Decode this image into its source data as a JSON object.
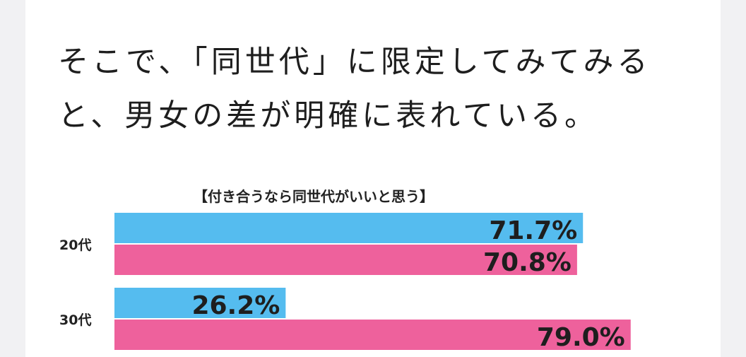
{
  "article": {
    "text": "そこで、「同世代」に限定してみてみると、男女の差が明確に表れている。"
  },
  "chart_data": {
    "type": "bar",
    "orientation": "horizontal",
    "title": "【付き合うなら同世代がいいと思う】",
    "categories": [
      "20代",
      "30代"
    ],
    "value_unit": "%",
    "series": [
      {
        "values": [
          71.7,
          26.2
        ],
        "color": "#55bcef"
      },
      {
        "values": [
          70.8,
          79.0
        ],
        "color": "#ee619c"
      }
    ],
    "data_labels": [
      [
        "71.7%",
        "26.2%"
      ],
      [
        "70.8%",
        "79.0%"
      ]
    ]
  }
}
